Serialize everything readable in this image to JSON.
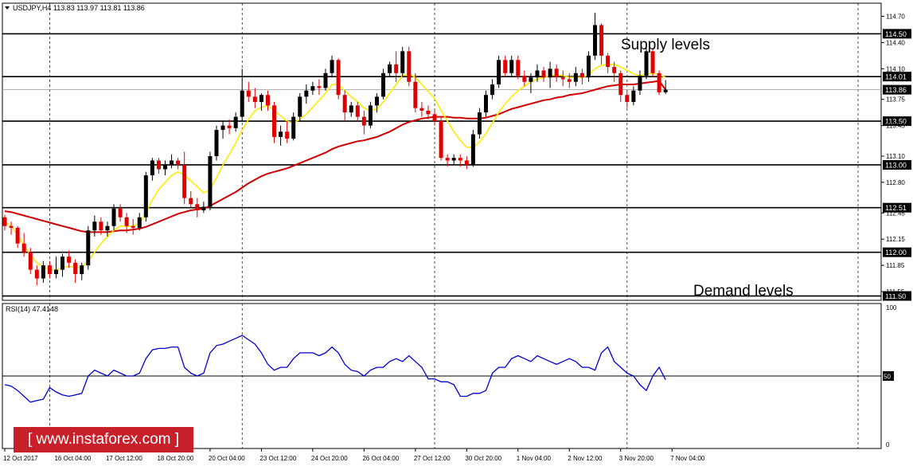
{
  "header": {
    "symbol_line": "USDJPY,H4  113.83 113.97 113.81 113.86",
    "rsi_line": "RSI(14) 47.4148"
  },
  "watermark": {
    "text": "[ www.instaforex.com ]"
  },
  "colors": {
    "bull": "#000000",
    "bear": "#e00000",
    "ma_fast": "#ffeb00",
    "ma_slow": "#d00000",
    "rsi": "#0000d0",
    "level_box": "#000000",
    "price_box": "#000000"
  },
  "chart_data": [
    {
      "type": "candlestick",
      "title": "",
      "symbol": "USDJPY",
      "timeframe": "H4",
      "ohlc_last": {
        "open": 113.83,
        "high": 113.97,
        "low": 113.81,
        "close": 113.86
      },
      "ylim": [
        111.45,
        114.85
      ],
      "y_ticks": [
        114.7,
        114.4,
        114.1,
        113.75,
        113.45,
        113.1,
        112.8,
        112.45,
        112.15,
        111.85,
        111.55
      ],
      "y_tick_labels": [
        "114.70",
        "114.40",
        "114.10",
        "113.75",
        "113.45",
        "113.10",
        "112.80",
        "112.45",
        "112.15",
        "111.85",
        "111.55"
      ],
      "x_tick_labels": [
        "12 Oct 2017",
        "16 Oct 04:00",
        "17 Oct 12:00",
        "18 Oct 20:00",
        "20 Oct 04:00",
        "23 Oct 12:00",
        "24 Oct 20:00",
        "26 Oct 04:00",
        "27 Oct 12:00",
        "30 Oct 20:00",
        "1 Nov 04:00",
        "2 Nov 12:00",
        "3 Nov 20:00",
        "7 Nov 04:00"
      ],
      "x_tick_index": [
        0,
        8,
        16,
        24,
        32,
        40,
        48,
        56,
        64,
        72,
        80,
        88,
        96,
        104
      ],
      "vertical_grid_index": [
        7,
        37,
        67,
        97,
        133
      ],
      "horizontal_levels": [
        114.5,
        114.01,
        113.5,
        113.0,
        112.51,
        112.0,
        111.5
      ],
      "horizontal_level_labels": [
        "114.50",
        "114.01",
        "113.50",
        "113.00",
        "112.51",
        "112.00",
        "111.50"
      ],
      "current_price": 113.86,
      "current_price_label": "113.86",
      "annotations": [
        "Supply levels",
        "Demand levels"
      ],
      "candles": [
        [
          112.4,
          112.43,
          112.25,
          112.3
        ],
        [
          112.3,
          112.35,
          112.2,
          112.28
        ],
        [
          112.28,
          112.3,
          112.05,
          112.1
        ],
        [
          112.1,
          112.22,
          111.95,
          112.0
        ],
        [
          112.0,
          112.05,
          111.75,
          111.8
        ],
        [
          111.8,
          111.85,
          111.62,
          111.7
        ],
        [
          111.7,
          111.9,
          111.65,
          111.85
        ],
        [
          111.85,
          111.9,
          111.7,
          111.75
        ],
        [
          111.75,
          111.95,
          111.7,
          111.8
        ],
        [
          111.8,
          111.98,
          111.72,
          111.95
        ],
        [
          111.95,
          112.02,
          111.82,
          111.88
        ],
        [
          111.88,
          111.92,
          111.65,
          111.75
        ],
        [
          111.75,
          111.88,
          111.68,
          111.85
        ],
        [
          111.85,
          112.3,
          111.8,
          112.25
        ],
        [
          112.25,
          112.42,
          112.18,
          112.35
        ],
        [
          112.35,
          112.4,
          112.2,
          112.25
        ],
        [
          112.25,
          112.35,
          112.18,
          112.3
        ],
        [
          112.3,
          112.55,
          112.25,
          112.5
        ],
        [
          112.5,
          112.55,
          112.35,
          112.4
        ],
        [
          112.4,
          112.45,
          112.22,
          112.3
        ],
        [
          112.3,
          112.38,
          112.2,
          112.28
        ],
        [
          112.28,
          112.45,
          112.25,
          112.4
        ],
        [
          112.4,
          112.92,
          112.35,
          112.88
        ],
        [
          112.88,
          113.08,
          112.82,
          113.05
        ],
        [
          113.05,
          113.08,
          112.9,
          112.95
        ],
        [
          112.95,
          113.05,
          112.88,
          113.0
        ],
        [
          113.0,
          113.12,
          112.96,
          113.05
        ],
        [
          113.05,
          113.08,
          112.95,
          113.0
        ],
        [
          113.0,
          113.15,
          112.55,
          112.62
        ],
        [
          112.62,
          112.7,
          112.5,
          112.55
        ],
        [
          112.55,
          112.62,
          112.4,
          112.48
        ],
        [
          112.48,
          112.58,
          112.45,
          112.52
        ],
        [
          112.52,
          113.15,
          112.48,
          113.1
        ],
        [
          113.1,
          113.45,
          113.05,
          113.4
        ],
        [
          113.4,
          113.5,
          113.3,
          113.45
        ],
        [
          113.45,
          113.52,
          113.35,
          113.42
        ],
        [
          113.42,
          113.6,
          113.38,
          113.55
        ],
        [
          113.55,
          114.1,
          113.5,
          113.85
        ],
        [
          113.85,
          113.95,
          113.72,
          113.78
        ],
        [
          113.78,
          113.88,
          113.65,
          113.72
        ],
        [
          113.72,
          113.82,
          113.62,
          113.8
        ],
        [
          113.8,
          113.85,
          113.62,
          113.68
        ],
        [
          113.68,
          113.72,
          113.25,
          113.32
        ],
        [
          113.32,
          113.45,
          113.22,
          113.38
        ],
        [
          113.38,
          113.5,
          113.25,
          113.3
        ],
        [
          113.3,
          113.6,
          113.28,
          113.55
        ],
        [
          113.55,
          113.82,
          113.5,
          113.78
        ],
        [
          113.78,
          113.92,
          113.7,
          113.85
        ],
        [
          113.85,
          113.95,
          113.8,
          113.9
        ],
        [
          113.9,
          113.98,
          113.8,
          113.88
        ],
        [
          113.88,
          114.1,
          113.85,
          114.05
        ],
        [
          114.05,
          114.25,
          114.0,
          114.2
        ],
        [
          114.2,
          114.22,
          113.75,
          113.8
        ],
        [
          113.8,
          113.85,
          113.5,
          113.6
        ],
        [
          113.6,
          113.72,
          113.55,
          113.68
        ],
        [
          113.68,
          113.72,
          113.5,
          113.55
        ],
        [
          113.55,
          113.62,
          113.35,
          113.45
        ],
        [
          113.45,
          113.72,
          113.42,
          113.68
        ],
        [
          113.68,
          113.82,
          113.6,
          113.78
        ],
        [
          113.78,
          114.1,
          113.75,
          114.05
        ],
        [
          114.05,
          114.18,
          114.0,
          114.15
        ],
        [
          114.15,
          114.3,
          113.95,
          114.05
        ],
        [
          114.05,
          114.35,
          114.0,
          114.3
        ],
        [
          114.3,
          114.35,
          113.9,
          113.95
        ],
        [
          113.95,
          114.05,
          113.6,
          113.65
        ],
        [
          113.65,
          113.72,
          113.55,
          113.62
        ],
        [
          113.62,
          113.68,
          113.52,
          113.58
        ],
        [
          113.58,
          113.62,
          113.45,
          113.5
        ],
        [
          113.5,
          113.55,
          113.05,
          113.08
        ],
        [
          113.08,
          113.12,
          112.98,
          113.05
        ],
        [
          113.05,
          113.12,
          113.0,
          113.08
        ],
        [
          113.08,
          113.12,
          112.98,
          113.05
        ],
        [
          113.05,
          113.1,
          112.95,
          113.0
        ],
        [
          113.0,
          113.4,
          112.98,
          113.35
        ],
        [
          113.35,
          113.65,
          113.3,
          113.6
        ],
        [
          113.6,
          113.85,
          113.55,
          113.8
        ],
        [
          113.8,
          113.98,
          113.75,
          113.92
        ],
        [
          113.92,
          114.25,
          113.88,
          114.2
        ],
        [
          114.2,
          114.25,
          114.02,
          114.05
        ],
        [
          114.05,
          114.25,
          114.0,
          114.2
        ],
        [
          114.2,
          114.25,
          113.98,
          114.02
        ],
        [
          114.02,
          114.08,
          113.9,
          113.95
        ],
        [
          113.95,
          114.05,
          113.82,
          114.0
        ],
        [
          114.0,
          114.15,
          113.95,
          114.08
        ],
        [
          114.08,
          114.12,
          113.95,
          114.0
        ],
        [
          114.0,
          114.18,
          113.88,
          114.1
        ],
        [
          114.1,
          114.15,
          113.95,
          114.0
        ],
        [
          114.0,
          114.08,
          113.9,
          113.98
        ],
        [
          113.98,
          114.05,
          113.88,
          113.95
        ],
        [
          113.95,
          114.12,
          113.9,
          114.05
        ],
        [
          114.05,
          114.1,
          113.92,
          114.0
        ],
        [
          114.0,
          114.3,
          113.95,
          114.25
        ],
        [
          114.25,
          114.74,
          114.2,
          114.6
        ],
        [
          114.6,
          114.62,
          114.15,
          114.25
        ],
        [
          114.25,
          114.28,
          114.05,
          114.12
        ],
        [
          114.12,
          114.18,
          113.95,
          114.05
        ],
        [
          114.05,
          114.08,
          113.72,
          113.8
        ],
        [
          113.8,
          113.85,
          113.65,
          113.72
        ],
        [
          113.72,
          113.9,
          113.68,
          113.85
        ],
        [
          113.85,
          114.08,
          113.8,
          114.02
        ],
        [
          114.02,
          114.35,
          113.98,
          114.3
        ],
        [
          114.3,
          114.33,
          114.0,
          114.05
        ],
        [
          114.05,
          114.08,
          113.8,
          113.83
        ],
        [
          113.83,
          113.97,
          113.81,
          113.86
        ]
      ],
      "ma_fast": [
        112.35,
        112.3,
        112.2,
        112.08,
        111.97,
        111.88,
        111.83,
        111.8,
        111.8,
        111.82,
        111.84,
        111.83,
        111.82,
        111.9,
        112.0,
        112.1,
        112.18,
        112.25,
        112.3,
        112.3,
        112.3,
        112.33,
        112.45,
        112.6,
        112.72,
        112.8,
        112.88,
        112.92,
        112.88,
        112.82,
        112.75,
        112.68,
        112.72,
        112.85,
        113.0,
        113.12,
        113.25,
        113.4,
        113.52,
        113.62,
        113.66,
        113.68,
        113.62,
        113.56,
        113.5,
        113.48,
        113.52,
        113.58,
        113.66,
        113.74,
        113.82,
        113.92,
        113.92,
        113.85,
        113.78,
        113.72,
        113.65,
        113.62,
        113.64,
        113.72,
        113.82,
        113.92,
        114.02,
        114.04,
        114.0,
        113.92,
        113.84,
        113.76,
        113.62,
        113.5,
        113.38,
        113.28,
        113.2,
        113.2,
        113.26,
        113.36,
        113.48,
        113.6,
        113.7,
        113.78,
        113.85,
        113.9,
        113.95,
        113.98,
        114.0,
        114.02,
        114.03,
        114.02,
        114.0,
        114.0,
        114.0,
        114.03,
        114.1,
        114.14,
        114.15,
        114.15,
        114.12,
        114.08,
        114.04,
        114.02,
        114.04,
        114.05,
        114.03,
        114.0
      ],
      "ma_slow": [
        112.47,
        112.46,
        112.44,
        112.42,
        112.4,
        112.38,
        112.36,
        112.34,
        112.32,
        112.3,
        112.28,
        112.26,
        112.24,
        112.23,
        112.23,
        112.23,
        112.23,
        112.24,
        112.25,
        112.25,
        112.26,
        112.27,
        112.29,
        112.32,
        112.35,
        112.38,
        112.41,
        112.44,
        112.46,
        112.48,
        112.49,
        112.5,
        112.53,
        112.57,
        112.61,
        112.65,
        112.69,
        112.74,
        112.79,
        112.83,
        112.87,
        112.9,
        112.92,
        112.94,
        112.96,
        112.99,
        113.02,
        113.05,
        113.08,
        113.11,
        113.14,
        113.18,
        113.21,
        113.23,
        113.25,
        113.27,
        113.28,
        113.3,
        113.32,
        113.35,
        113.38,
        113.42,
        113.46,
        113.49,
        113.51,
        113.53,
        113.54,
        113.55,
        113.55,
        113.55,
        113.54,
        113.54,
        113.53,
        113.53,
        113.53,
        113.54,
        113.56,
        113.58,
        113.61,
        113.64,
        113.66,
        113.68,
        113.7,
        113.72,
        113.74,
        113.75,
        113.77,
        113.78,
        113.8,
        113.81,
        113.82,
        113.84,
        113.86,
        113.88,
        113.9,
        113.91,
        113.92,
        113.92,
        113.92,
        113.93,
        113.94,
        113.95,
        113.96,
        113.86
      ]
    },
    {
      "type": "line",
      "title": "RSI(14) 47.4148",
      "indicator": "RSI(14)",
      "last_value": 47.4148,
      "ylim": [
        0,
        100
      ],
      "y_ticks": [
        100,
        50,
        0
      ],
      "y_tick_labels": [
        "100",
        "50",
        "0"
      ],
      "reference_level": 50,
      "reference_level_label": "50",
      "values": [
        44,
        43,
        40,
        36,
        32,
        33,
        34,
        42,
        39,
        37,
        36,
        37,
        38,
        50,
        54,
        52,
        50,
        54,
        52,
        50,
        50,
        52,
        62,
        68,
        69,
        69,
        70,
        70,
        56,
        52,
        50,
        52,
        66,
        71,
        72,
        74,
        76,
        78,
        75,
        72,
        66,
        58,
        54,
        56,
        56,
        62,
        66,
        66,
        66,
        64,
        66,
        70,
        66,
        58,
        54,
        53,
        50,
        54,
        56,
        56,
        60,
        62,
        60,
        64,
        60,
        56,
        48,
        48,
        46,
        46,
        44,
        36,
        36,
        38,
        38,
        40,
        52,
        56,
        56,
        62,
        64,
        62,
        60,
        64,
        62,
        60,
        58,
        60,
        62,
        60,
        56,
        56,
        54,
        66,
        70,
        60,
        56,
        52,
        50,
        44,
        40,
        50,
        56,
        47.4
      ]
    }
  ]
}
